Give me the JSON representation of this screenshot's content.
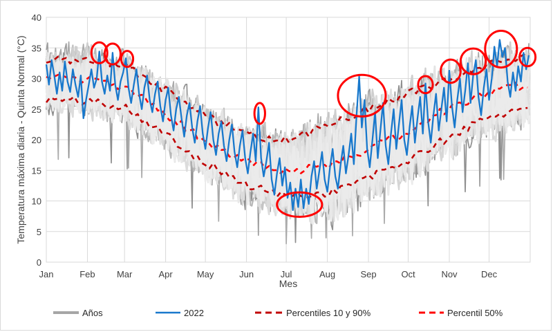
{
  "figure": {
    "background": "#ffffff",
    "border_color": "#d9d9d9"
  },
  "chart": {
    "y_axis": {
      "title": "Temperatura máxima diaria - Quinta Normal (°C)",
      "min": 0,
      "max": 40,
      "tick_step": 5,
      "ticks": [
        0,
        5,
        10,
        15,
        20,
        25,
        30,
        35,
        40
      ]
    },
    "x_axis": {
      "title": "Mes",
      "months": [
        "Jan",
        "Feb",
        "Mar",
        "Apr",
        "May",
        "Jun",
        "Jul",
        "Aug",
        "Sep",
        "Oct",
        "Nov",
        "Dec"
      ]
    },
    "legend": {
      "items": [
        {
          "label": "Años",
          "color": "#a6a6a6",
          "dash": "solid",
          "weight": 4
        },
        {
          "label": "2022",
          "color": "#1878cc",
          "dash": "solid",
          "weight": 2.5
        },
        {
          "label": "Percentiles 10 y 90%",
          "color": "#c00000",
          "dash": "dashed",
          "weight": 3
        },
        {
          "label": "Percentil 50%",
          "color": "#ff0000",
          "dash": "dashed",
          "weight": 3
        }
      ]
    },
    "grid_color": "#d9d9d9",
    "plot_border_color": "#d9d9d9"
  },
  "chart_data": {
    "type": "line",
    "title": "",
    "x_unit": "day_of_year",
    "ylim": [
      0,
      40
    ],
    "grid": true,
    "legend_position": "bottom",
    "anchor_days": [
      0,
      31,
      59,
      90,
      120,
      151,
      181,
      212,
      243,
      273,
      304,
      334,
      365
    ],
    "series": [
      {
        "name": "Percentil 90",
        "style": "dashed",
        "color": "#c00000",
        "anchor_values": [
          33.0,
          33.2,
          32.2,
          28.0,
          24.0,
          20.8,
          19.8,
          22.3,
          25.0,
          27.5,
          30.0,
          32.3,
          33.8
        ]
      },
      {
        "name": "Percentil 50",
        "style": "dashed",
        "color": "#ff0000",
        "anchor_values": [
          30.0,
          29.8,
          28.6,
          24.2,
          19.8,
          16.2,
          14.8,
          15.8,
          18.5,
          21.5,
          25.2,
          27.6,
          29.2
        ]
      },
      {
        "name": "Percentil 10",
        "style": "dashed",
        "color": "#c00000",
        "anchor_values": [
          26.6,
          26.3,
          25.5,
          20.8,
          16.3,
          12.5,
          10.8,
          11.3,
          13.8,
          16.6,
          20.4,
          23.8,
          25.3
        ]
      },
      {
        "name": "2022",
        "style": "solid",
        "color": "#1878cc",
        "points": [
          [
            0,
            32.3
          ],
          [
            2,
            29.0
          ],
          [
            4,
            33.0
          ],
          [
            6,
            30.5
          ],
          [
            8,
            27.5
          ],
          [
            10,
            31.0
          ],
          [
            12,
            28.0
          ],
          [
            14,
            32.8
          ],
          [
            16,
            29.5
          ],
          [
            18,
            27.8
          ],
          [
            20,
            31.5
          ],
          [
            22,
            29.0
          ],
          [
            24,
            27.0
          ],
          [
            26,
            30.5
          ],
          [
            28,
            23.5
          ],
          [
            30,
            26.5
          ],
          [
            32,
            29.0
          ],
          [
            34,
            31.5
          ],
          [
            36,
            28.5
          ],
          [
            38,
            30.0
          ],
          [
            40,
            34.4
          ],
          [
            42,
            29.5
          ],
          [
            44,
            27.5
          ],
          [
            46,
            30.5
          ],
          [
            48,
            28.0
          ],
          [
            50,
            34.2
          ],
          [
            52,
            29.0
          ],
          [
            54,
            26.5
          ],
          [
            56,
            29.5
          ],
          [
            58,
            31.0
          ],
          [
            60,
            33.3
          ],
          [
            62,
            28.5
          ],
          [
            64,
            26.0
          ],
          [
            66,
            29.0
          ],
          [
            68,
            31.5
          ],
          [
            70,
            27.5
          ],
          [
            72,
            25.0
          ],
          [
            74,
            28.5
          ],
          [
            76,
            30.5
          ],
          [
            78,
            26.5
          ],
          [
            80,
            24.5
          ],
          [
            82,
            27.5
          ],
          [
            84,
            29.5
          ],
          [
            86,
            25.5
          ],
          [
            88,
            23.0
          ],
          [
            90,
            26.5
          ],
          [
            92,
            28.5
          ],
          [
            94,
            24.0
          ],
          [
            96,
            21.5
          ],
          [
            98,
            25.0
          ],
          [
            100,
            27.0
          ],
          [
            102,
            23.5
          ],
          [
            104,
            20.5
          ],
          [
            106,
            24.0
          ],
          [
            108,
            26.0
          ],
          [
            110,
            22.0
          ],
          [
            112,
            19.5
          ],
          [
            114,
            23.0
          ],
          [
            116,
            25.5
          ],
          [
            118,
            21.0
          ],
          [
            120,
            18.5
          ],
          [
            122,
            22.0
          ],
          [
            124,
            24.5
          ],
          [
            126,
            20.0
          ],
          [
            128,
            17.5
          ],
          [
            130,
            21.0
          ],
          [
            132,
            23.0
          ],
          [
            134,
            19.0
          ],
          [
            136,
            16.5
          ],
          [
            138,
            20.0
          ],
          [
            140,
            22.5
          ],
          [
            142,
            18.0
          ],
          [
            144,
            15.5
          ],
          [
            146,
            19.0
          ],
          [
            148,
            21.5
          ],
          [
            150,
            17.0
          ],
          [
            152,
            14.5
          ],
          [
            154,
            18.0
          ],
          [
            156,
            21.0
          ],
          [
            158,
            16.5
          ],
          [
            160,
            25.3
          ],
          [
            162,
            17.0
          ],
          [
            164,
            14.0
          ],
          [
            166,
            16.5
          ],
          [
            168,
            19.5
          ],
          [
            170,
            13.5
          ],
          [
            172,
            11.0
          ],
          [
            174,
            14.5
          ],
          [
            176,
            17.0
          ],
          [
            178,
            12.5
          ],
          [
            180,
            15.5
          ],
          [
            182,
            10.5
          ],
          [
            184,
            13.0
          ],
          [
            186,
            8.5
          ],
          [
            188,
            12.0
          ],
          [
            190,
            9.0
          ],
          [
            192,
            13.5
          ],
          [
            194,
            8.8
          ],
          [
            196,
            12.0
          ],
          [
            198,
            9.5
          ],
          [
            200,
            14.0
          ],
          [
            202,
            16.5
          ],
          [
            204,
            12.0
          ],
          [
            206,
            15.0
          ],
          [
            208,
            18.0
          ],
          [
            210,
            13.5
          ],
          [
            212,
            11.5
          ],
          [
            214,
            15.5
          ],
          [
            216,
            18.5
          ],
          [
            218,
            14.0
          ],
          [
            220,
            12.0
          ],
          [
            222,
            16.0
          ],
          [
            224,
            19.0
          ],
          [
            226,
            14.5
          ],
          [
            228,
            17.5
          ],
          [
            230,
            21.0
          ],
          [
            232,
            16.0
          ],
          [
            234,
            24.0
          ],
          [
            236,
            30.3
          ],
          [
            238,
            22.0
          ],
          [
            240,
            26.5
          ],
          [
            242,
            18.5
          ],
          [
            244,
            15.5
          ],
          [
            246,
            20.0
          ],
          [
            248,
            24.5
          ],
          [
            250,
            17.0
          ],
          [
            252,
            21.5
          ],
          [
            254,
            26.0
          ],
          [
            256,
            19.0
          ],
          [
            258,
            16.0
          ],
          [
            260,
            21.0
          ],
          [
            262,
            25.0
          ],
          [
            264,
            18.5
          ],
          [
            266,
            22.5
          ],
          [
            268,
            26.5
          ],
          [
            270,
            20.0
          ],
          [
            272,
            17.5
          ],
          [
            274,
            22.0
          ],
          [
            276,
            25.5
          ],
          [
            278,
            19.5
          ],
          [
            280,
            23.5
          ],
          [
            282,
            27.0
          ],
          [
            284,
            21.0
          ],
          [
            286,
            29.2
          ],
          [
            288,
            23.0
          ],
          [
            290,
            19.5
          ],
          [
            292,
            24.0
          ],
          [
            294,
            27.5
          ],
          [
            296,
            21.5
          ],
          [
            298,
            25.0
          ],
          [
            300,
            28.5
          ],
          [
            302,
            23.0
          ],
          [
            304,
            31.3
          ],
          [
            306,
            25.5
          ],
          [
            308,
            22.0
          ],
          [
            310,
            26.5
          ],
          [
            312,
            30.0
          ],
          [
            314,
            24.5
          ],
          [
            316,
            28.0
          ],
          [
            318,
            32.5
          ],
          [
            320,
            26.0
          ],
          [
            322,
            30.5
          ],
          [
            324,
            33.0
          ],
          [
            326,
            27.0
          ],
          [
            328,
            24.0
          ],
          [
            330,
            28.5
          ],
          [
            332,
            31.5
          ],
          [
            334,
            26.5
          ],
          [
            336,
            30.0
          ],
          [
            338,
            35.2
          ],
          [
            340,
            32.0
          ],
          [
            342,
            36.3
          ],
          [
            344,
            33.5
          ],
          [
            346,
            35.0
          ],
          [
            348,
            29.5
          ],
          [
            350,
            27.0
          ],
          [
            352,
            31.0
          ],
          [
            354,
            28.0
          ],
          [
            356,
            32.0
          ],
          [
            358,
            29.5
          ],
          [
            360,
            34.2
          ],
          [
            362,
            31.5
          ],
          [
            364,
            33.8
          ]
        ]
      }
    ],
    "years_band": {
      "name": "Años",
      "count": 30,
      "color_palette": [
        "#8f8f8f",
        "#9e9e9e",
        "#ababab",
        "#b8b8b8",
        "#c4c4c4",
        "#cfcfcf",
        "#d6d6d6",
        "#dcdcdc",
        "#e0e0e0",
        "#e4e4e4",
        "#e8e8e8",
        "#ebebeb"
      ],
      "max_anchor_values": [
        37.5,
        38.0,
        36.5,
        33.5,
        30.0,
        27.0,
        25.0,
        27.5,
        30.5,
        32.5,
        35.5,
        37.5,
        38.0
      ],
      "min_anchor_values": [
        17.0,
        18.0,
        16.0,
        12.0,
        8.0,
        5.5,
        3.5,
        4.5,
        5.0,
        8.5,
        11.0,
        13.5,
        15.0
      ]
    },
    "annotations": {
      "shape": "ellipse",
      "color": "#ff0000",
      "items": [
        [
          40,
          34.2,
          6,
          1.7
        ],
        [
          50,
          34.0,
          6,
          1.7
        ],
        [
          61,
          33.2,
          4.5,
          1.3
        ],
        [
          161,
          24.3,
          4,
          1.7
        ],
        [
          191,
          9.4,
          17,
          2.0
        ],
        [
          238,
          27.2,
          18,
          3.4
        ],
        [
          286,
          29.0,
          5.5,
          1.4
        ],
        [
          305,
          31.2,
          7.5,
          1.9
        ],
        [
          322,
          32.8,
          9.5,
          2.1
        ],
        [
          343,
          34.8,
          12,
          3.0
        ],
        [
          363,
          33.5,
          6,
          1.5
        ]
      ]
    }
  }
}
